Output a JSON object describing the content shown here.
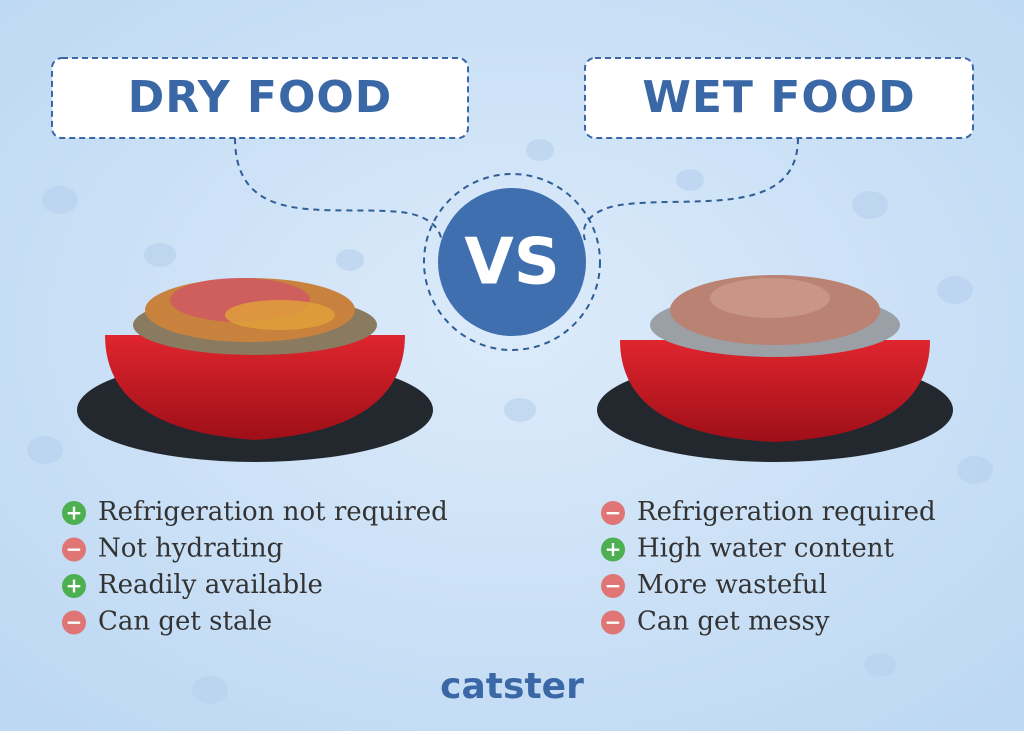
{
  "left": {
    "title": "DRY FOOD",
    "items": [
      {
        "sign": "+",
        "text": "Refrigeration not required"
      },
      {
        "sign": "−",
        "text": "Not hydrating"
      },
      {
        "sign": "+",
        "text": "Readily available"
      },
      {
        "sign": "−",
        "text": "Can get stale"
      }
    ]
  },
  "right": {
    "title": "WET FOOD",
    "items": [
      {
        "sign": "−",
        "text": "Refrigeration required"
      },
      {
        "sign": "+",
        "text": "High water content"
      },
      {
        "sign": "−",
        "text": "More wasteful"
      },
      {
        "sign": "−",
        "text": "Can get messy"
      }
    ]
  },
  "vs": "VS",
  "logo": "catster"
}
